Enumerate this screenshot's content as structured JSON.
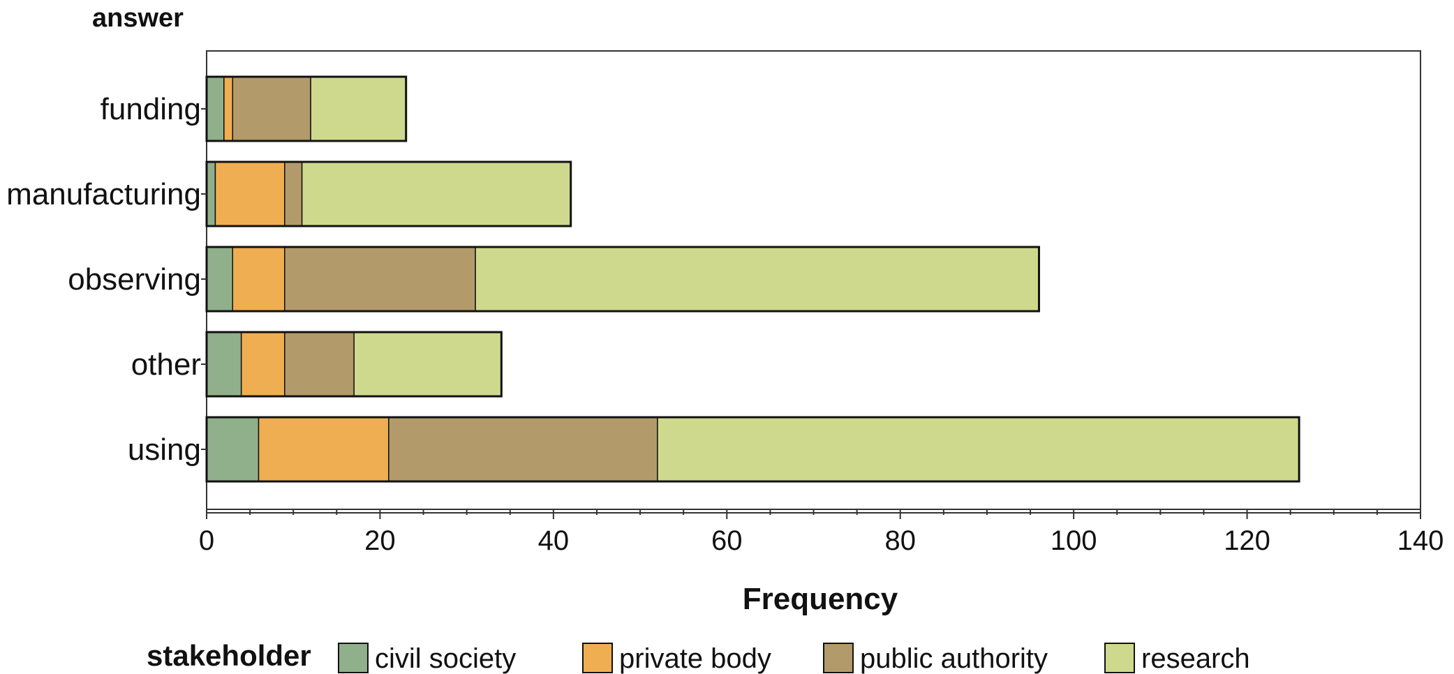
{
  "chart_data": {
    "type": "bar",
    "orientation": "horizontal",
    "stacked": true,
    "y_axis_title": "answer",
    "xlabel": "Frequency",
    "xlim": [
      0,
      140
    ],
    "x_ticks": [
      0,
      20,
      40,
      60,
      80,
      100,
      120,
      140
    ],
    "categories": [
      "funding",
      "manufacturing",
      "observing",
      "other",
      "using"
    ],
    "legend_title": "stakeholder",
    "legend_position": "bottom",
    "grid": false,
    "series": [
      {
        "name": "civil society",
        "color": "#8fb08a",
        "values": [
          2,
          1,
          3,
          4,
          6
        ]
      },
      {
        "name": "private body",
        "color": "#f0ae52",
        "values": [
          1,
          8,
          6,
          5,
          15
        ]
      },
      {
        "name": "public authority",
        "color": "#b39a6b",
        "values": [
          9,
          2,
          22,
          8,
          31
        ]
      },
      {
        "name": "research",
        "color": "#cfd98d",
        "values": [
          11,
          31,
          65,
          17,
          74
        ]
      }
    ]
  }
}
